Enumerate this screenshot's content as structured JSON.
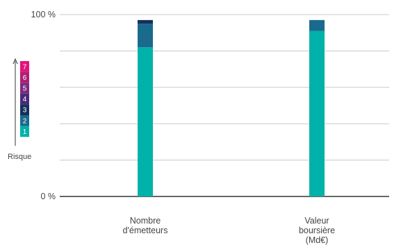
{
  "chart_data": {
    "type": "bar",
    "stacked": true,
    "categories": [
      [
        "Nombre",
        "d'émetteurs"
      ],
      [
        "Valeur",
        "boursière",
        "(Md€)"
      ]
    ],
    "series": [
      {
        "name": "1",
        "color": "#00b2a9",
        "values": [
          82,
          91
        ]
      },
      {
        "name": "2",
        "color": "#1a6a8e",
        "values": [
          13,
          6
        ]
      },
      {
        "name": "3",
        "color": "#15305c",
        "values": [
          2,
          0
        ]
      },
      {
        "name": "4",
        "color": "#4a2a78",
        "values": [
          0,
          0
        ]
      },
      {
        "name": "5",
        "color": "#7d2a7e",
        "values": [
          0,
          0
        ]
      },
      {
        "name": "6",
        "color": "#b01e73",
        "values": [
          0,
          0
        ]
      },
      {
        "name": "7",
        "color": "#e2137d",
        "values": [
          0,
          0
        ]
      }
    ],
    "ylim": [
      0,
      100
    ],
    "y_ticks": [
      {
        "value": 0,
        "label": "0 %"
      },
      {
        "value": 20,
        "label": ""
      },
      {
        "value": 40,
        "label": ""
      },
      {
        "value": 60,
        "label": ""
      },
      {
        "value": 80,
        "label": ""
      },
      {
        "value": 100,
        "label": "100 %"
      }
    ],
    "grid": true,
    "legend": {
      "title": "Risque",
      "placement": "left",
      "items": [
        "1",
        "2",
        "3",
        "4",
        "5",
        "6",
        "7"
      ]
    }
  }
}
